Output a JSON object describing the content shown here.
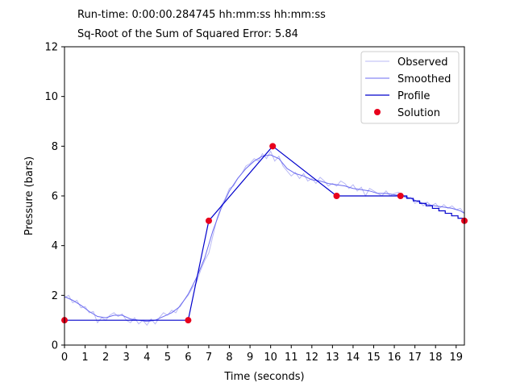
{
  "header": {
    "runtime": "Run-time: 0:00:00.284745 hh:mm:ss hh:mm:ss",
    "error": "Sq-Root of the Sum of Squared Error: 5.84"
  },
  "chart_data": {
    "type": "line",
    "xlabel": "Time (seconds)",
    "ylabel": "Pressure (bars)",
    "xlim": [
      0,
      19.4
    ],
    "ylim": [
      0,
      12
    ],
    "xticks": [
      "0",
      "1",
      "2",
      "3",
      "4",
      "5",
      "6",
      "7",
      "8",
      "9",
      "10",
      "11",
      "12",
      "13",
      "14",
      "15",
      "16",
      "17",
      "18",
      "19"
    ],
    "yticks": [
      "0",
      "2",
      "4",
      "6",
      "8",
      "10",
      "12"
    ],
    "grid": false,
    "legend_position": "top-right",
    "colors": {
      "observed": "#b9b9f5",
      "smoothed": "#6b6bf0",
      "profile": "#0000cc",
      "solution": "#e8001c"
    },
    "legend": [
      "Observed",
      "Smoothed",
      "Profile",
      "Solution"
    ],
    "series": [
      {
        "name": "Observed",
        "x": [
          0.0,
          0.2,
          0.4,
          0.6,
          0.8,
          1.0,
          1.2,
          1.4,
          1.6,
          1.8,
          2.0,
          2.2,
          2.4,
          2.6,
          2.8,
          3.0,
          3.2,
          3.4,
          3.6,
          3.8,
          4.0,
          4.2,
          4.4,
          4.6,
          4.8,
          5.0,
          5.2,
          5.4,
          5.6,
          5.8,
          6.0,
          6.2,
          6.4,
          6.6,
          6.8,
          7.0,
          7.2,
          7.4,
          7.6,
          7.8,
          8.0,
          8.2,
          8.4,
          8.6,
          8.8,
          9.0,
          9.2,
          9.4,
          9.6,
          9.8,
          10.0,
          10.2,
          10.4,
          10.6,
          10.8,
          11.0,
          11.2,
          11.4,
          11.6,
          11.8,
          12.0,
          12.2,
          12.4,
          12.6,
          12.8,
          13.0,
          13.2,
          13.4,
          13.6,
          13.8,
          14.0,
          14.2,
          14.4,
          14.6,
          14.8,
          15.0,
          15.2,
          15.4,
          15.6,
          15.8,
          16.0,
          16.2,
          16.4,
          16.6,
          16.8,
          17.0,
          17.2,
          17.4,
          17.6,
          17.8,
          18.0,
          18.2,
          18.4,
          18.6,
          18.8,
          19.0,
          19.2,
          19.4
        ],
        "y": [
          1.9,
          2.0,
          1.7,
          1.8,
          1.5,
          1.55,
          1.3,
          1.35,
          0.9,
          1.1,
          1.0,
          1.2,
          1.3,
          1.15,
          1.25,
          1.0,
          0.9,
          1.1,
          0.85,
          1.0,
          0.8,
          1.05,
          0.85,
          1.1,
          1.3,
          1.2,
          1.4,
          1.3,
          1.6,
          1.8,
          2.0,
          2.3,
          2.5,
          3.0,
          3.4,
          3.7,
          4.4,
          5.1,
          5.6,
          5.9,
          6.3,
          6.4,
          6.7,
          6.9,
          7.2,
          7.3,
          7.5,
          7.4,
          7.7,
          7.5,
          7.8,
          7.4,
          7.6,
          7.2,
          7.0,
          6.8,
          6.95,
          6.7,
          6.9,
          6.6,
          6.7,
          6.5,
          6.75,
          6.6,
          6.4,
          6.5,
          6.4,
          6.6,
          6.5,
          6.3,
          6.45,
          6.2,
          6.35,
          6.0,
          6.3,
          6.2,
          6.1,
          6.0,
          6.2,
          6.0,
          6.1,
          6.15,
          6.0,
          5.9,
          5.95,
          5.7,
          5.8,
          5.6,
          5.75,
          5.6,
          5.7,
          5.5,
          5.65,
          5.5,
          5.6,
          5.45,
          5.5,
          5.3
        ]
      },
      {
        "name": "Smoothed",
        "x": [
          0.0,
          0.4,
          0.8,
          1.2,
          1.6,
          2.0,
          2.4,
          2.8,
          3.2,
          3.6,
          4.0,
          4.4,
          4.8,
          5.2,
          5.6,
          6.0,
          6.4,
          6.8,
          7.2,
          7.6,
          8.0,
          8.4,
          8.8,
          9.2,
          9.6,
          10.0,
          10.4,
          10.8,
          11.2,
          11.6,
          12.0,
          12.4,
          12.8,
          13.2,
          13.6,
          14.0,
          14.4,
          14.8,
          15.2,
          15.6,
          16.0,
          16.4,
          16.8,
          17.2,
          17.6,
          18.0,
          18.4,
          18.8,
          19.2,
          19.4
        ],
        "y": [
          1.95,
          1.8,
          1.6,
          1.35,
          1.15,
          1.1,
          1.2,
          1.2,
          1.05,
          1.0,
          0.95,
          1.0,
          1.15,
          1.3,
          1.55,
          2.05,
          2.7,
          3.5,
          4.6,
          5.5,
          6.2,
          6.7,
          7.1,
          7.4,
          7.6,
          7.65,
          7.5,
          7.1,
          6.9,
          6.8,
          6.65,
          6.6,
          6.5,
          6.45,
          6.4,
          6.3,
          6.25,
          6.2,
          6.1,
          6.1,
          6.05,
          6.0,
          5.9,
          5.75,
          5.65,
          5.6,
          5.55,
          5.5,
          5.4,
          5.3
        ]
      },
      {
        "name": "Profile",
        "x": [
          0,
          6,
          7,
          10.1,
          13.2,
          16.3,
          19.4
        ],
        "y": [
          1,
          1,
          5,
          8,
          6,
          6,
          5
        ],
        "note": "descending steps between 16.3 and 19.4"
      },
      {
        "name": "Solution",
        "type": "scatter",
        "x": [
          0,
          6,
          7,
          10.1,
          13.2,
          16.3,
          19.4
        ],
        "y": [
          1,
          1,
          5,
          8,
          6,
          6,
          5
        ]
      }
    ]
  }
}
